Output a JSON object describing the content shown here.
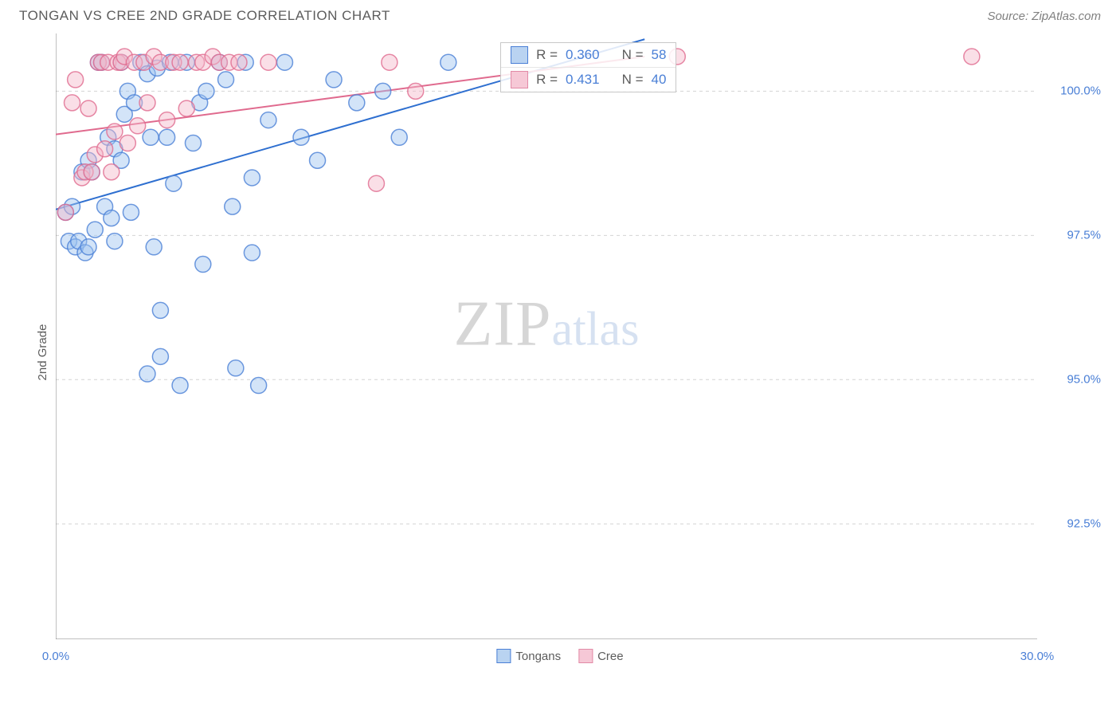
{
  "header": {
    "title": "TONGAN VS CREE 2ND GRADE CORRELATION CHART",
    "source": "Source: ZipAtlas.com"
  },
  "y_axis_label": "2nd Grade",
  "watermark": {
    "zip": "ZIP",
    "atlas": "atlas"
  },
  "chart": {
    "type": "scatter",
    "background_color": "#ffffff",
    "grid_color": "#d4d4d4",
    "axis_line_color": "#808080",
    "xlim": [
      0,
      30
    ],
    "ylim": [
      90.5,
      101
    ],
    "x_ticks_major": [
      0,
      30
    ],
    "x_ticks_minor": [
      3,
      6,
      9,
      12,
      15,
      18,
      21,
      24,
      27
    ],
    "y_ticks": [
      {
        "v": 100.0,
        "label": "100.0%"
      },
      {
        "v": 97.5,
        "label": "97.5%"
      },
      {
        "v": 95.0,
        "label": "95.0%"
      },
      {
        "v": 92.5,
        "label": "92.5%"
      }
    ],
    "x_tick_labels": [
      {
        "v": 0.0,
        "label": "0.0%"
      },
      {
        "v": 30.0,
        "label": "30.0%"
      }
    ],
    "marker_radius": 10,
    "marker_opacity": 0.45,
    "marker_stroke_width": 1.5,
    "line_width": 2,
    "series": [
      {
        "name": "Tongans",
        "fill": "#9ec4ef",
        "stroke": "#4a7fd6",
        "line_color": "#2e6fd0",
        "R": "0.360",
        "N": "58",
        "points": [
          [
            0.3,
            97.9
          ],
          [
            0.4,
            97.4
          ],
          [
            0.5,
            98.0
          ],
          [
            0.6,
            97.3
          ],
          [
            0.7,
            97.4
          ],
          [
            0.8,
            98.6
          ],
          [
            0.9,
            97.2
          ],
          [
            1.0,
            97.3
          ],
          [
            1.0,
            98.8
          ],
          [
            1.1,
            98.6
          ],
          [
            1.2,
            97.6
          ],
          [
            1.3,
            100.5
          ],
          [
            1.4,
            100.5
          ],
          [
            1.5,
            98.0
          ],
          [
            1.6,
            99.2
          ],
          [
            1.7,
            97.8
          ],
          [
            1.8,
            97.4
          ],
          [
            1.8,
            99.0
          ],
          [
            2.0,
            98.8
          ],
          [
            2.0,
            100.5
          ],
          [
            2.1,
            99.6
          ],
          [
            2.2,
            100.0
          ],
          [
            2.3,
            97.9
          ],
          [
            2.4,
            99.8
          ],
          [
            2.6,
            100.5
          ],
          [
            2.8,
            100.3
          ],
          [
            2.8,
            95.1
          ],
          [
            2.9,
            99.2
          ],
          [
            3.0,
            97.3
          ],
          [
            3.1,
            100.4
          ],
          [
            3.2,
            96.2
          ],
          [
            3.2,
            95.4
          ],
          [
            3.4,
            99.2
          ],
          [
            3.5,
            100.5
          ],
          [
            3.6,
            98.4
          ],
          [
            3.8,
            94.9
          ],
          [
            4.0,
            100.5
          ],
          [
            4.2,
            99.1
          ],
          [
            4.4,
            99.8
          ],
          [
            4.5,
            97.0
          ],
          [
            4.6,
            100.0
          ],
          [
            5.0,
            100.5
          ],
          [
            5.2,
            100.2
          ],
          [
            5.4,
            98.0
          ],
          [
            5.5,
            95.2
          ],
          [
            5.8,
            100.5
          ],
          [
            6.0,
            98.5
          ],
          [
            6.0,
            97.2
          ],
          [
            6.2,
            94.9
          ],
          [
            6.5,
            99.5
          ],
          [
            7.0,
            100.5
          ],
          [
            7.5,
            99.2
          ],
          [
            8.0,
            98.8
          ],
          [
            8.5,
            100.2
          ],
          [
            9.2,
            99.8
          ],
          [
            10.0,
            100.0
          ],
          [
            10.5,
            99.2
          ],
          [
            12.0,
            100.5
          ]
        ],
        "trend": {
          "x1": 0,
          "y1": 97.95,
          "x2": 18,
          "y2": 100.9
        }
      },
      {
        "name": "Cree",
        "fill": "#f4b7c9",
        "stroke": "#e06a8e",
        "line_color": "#e06a8e",
        "R": "0.431",
        "N": "40",
        "points": [
          [
            0.3,
            97.9
          ],
          [
            0.5,
            99.8
          ],
          [
            0.6,
            100.2
          ],
          [
            0.8,
            98.5
          ],
          [
            0.9,
            98.6
          ],
          [
            1.0,
            99.7
          ],
          [
            1.1,
            98.6
          ],
          [
            1.2,
            98.9
          ],
          [
            1.3,
            100.5
          ],
          [
            1.4,
            100.5
          ],
          [
            1.5,
            99.0
          ],
          [
            1.6,
            100.5
          ],
          [
            1.7,
            98.6
          ],
          [
            1.8,
            99.3
          ],
          [
            1.9,
            100.5
          ],
          [
            2.0,
            100.5
          ],
          [
            2.1,
            100.6
          ],
          [
            2.2,
            99.1
          ],
          [
            2.4,
            100.5
          ],
          [
            2.5,
            99.4
          ],
          [
            2.7,
            100.5
          ],
          [
            2.8,
            99.8
          ],
          [
            3.0,
            100.6
          ],
          [
            3.2,
            100.5
          ],
          [
            3.4,
            99.5
          ],
          [
            3.6,
            100.5
          ],
          [
            3.8,
            100.5
          ],
          [
            4.0,
            99.7
          ],
          [
            4.3,
            100.5
          ],
          [
            4.5,
            100.5
          ],
          [
            4.8,
            100.6
          ],
          [
            5.0,
            100.5
          ],
          [
            5.3,
            100.5
          ],
          [
            5.6,
            100.5
          ],
          [
            6.5,
            100.5
          ],
          [
            9.8,
            98.4
          ],
          [
            10.2,
            100.5
          ],
          [
            11.0,
            100.0
          ],
          [
            19.0,
            100.6
          ],
          [
            28.0,
            100.6
          ]
        ],
        "trend": {
          "x1": 0,
          "y1": 99.25,
          "x2": 18,
          "y2": 100.6
        }
      }
    ]
  },
  "inset_legend": {
    "left_pct": 45.3,
    "top_pct": 1.5,
    "rows": [
      {
        "swatch_fill": "#b9d3f1",
        "swatch_stroke": "#4a7fd6",
        "r_label": "R =",
        "r_val": "0.360",
        "n_label": "N =",
        "n_val": "58"
      },
      {
        "swatch_fill": "#f6c8d6",
        "swatch_stroke": "#e28aa6",
        "r_label": "R =",
        "r_val": " 0.431",
        "n_label": "N =",
        "n_val": "40"
      }
    ]
  },
  "bottom_legend": [
    {
      "swatch_fill": "#b9d3f1",
      "swatch_stroke": "#4a7fd6",
      "label": "Tongans"
    },
    {
      "swatch_fill": "#f6c8d6",
      "swatch_stroke": "#e28aa6",
      "label": "Cree"
    }
  ]
}
